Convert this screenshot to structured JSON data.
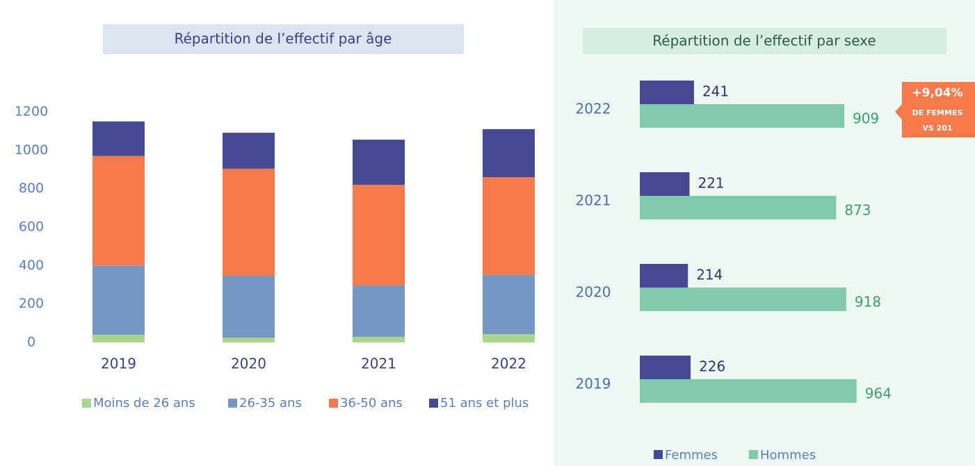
{
  "chart_data": [
    {
      "type": "stacked_bar",
      "title": "Répartition de l’effectif par âge",
      "categories": [
        "2019",
        "2020",
        "2021",
        "2022"
      ],
      "series": [
        {
          "name": "Moins de 26 ans",
          "color": "#a9d48b",
          "values": [
            40,
            25,
            29,
            43
          ]
        },
        {
          "name": "26-35 ans",
          "color": "#7597c3",
          "values": [
            360,
            322,
            267,
            308
          ]
        },
        {
          "name": "36-50 ans",
          "color": "#f4794b",
          "values": [
            570,
            557,
            524,
            509
          ]
        },
        {
          "name": "51 ans et plus",
          "color": "#434a93",
          "values": [
            180,
            187,
            235,
            250
          ]
        }
      ],
      "ylim": [
        0,
        1200
      ],
      "yticks": [
        0,
        200,
        400,
        600,
        800,
        1000,
        1200
      ],
      "grid": false,
      "legend": "bottom"
    },
    {
      "type": "hbar",
      "title": "Répartition de l’effectif par sexe",
      "categories": [
        "2022",
        "2021",
        "2020",
        "2019"
      ],
      "series": [
        {
          "name": "Femmes",
          "color": "#434a93",
          "label_color": "#2e3372",
          "values": [
            241,
            221,
            214,
            226
          ]
        },
        {
          "name": "Hommes",
          "color": "#80cbab",
          "label_color": "#3a9d74",
          "values": [
            909,
            873,
            918,
            964
          ]
        }
      ],
      "annotations": [
        "+9,04%",
        "DE FEMMES",
        "VS 201"
      ],
      "legend": "bottom"
    }
  ]
}
